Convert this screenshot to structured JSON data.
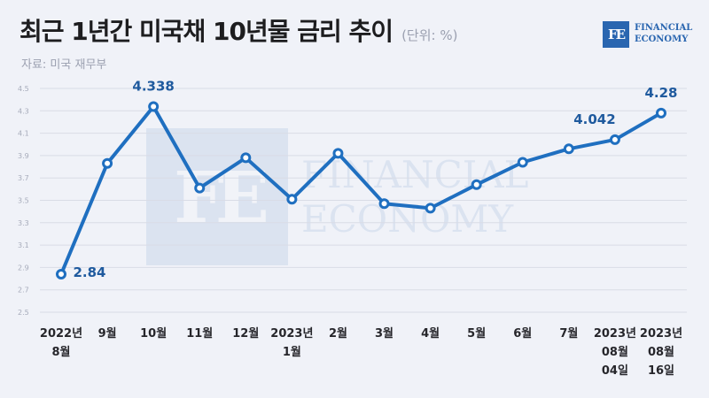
{
  "header": {
    "title": "최근 1년간 미국채 10년물 금리 추이",
    "unit": "(단위: %)",
    "source": "자료: 미국 재무부"
  },
  "brand": {
    "mark": "FE",
    "line1": "FINANCIAL",
    "line2": "ECONOMY"
  },
  "chart_data": {
    "type": "line",
    "title": "최근 1년간 미국채 10년물 금리 추이",
    "unit": "(단위: %)",
    "categories": [
      [
        "2022년",
        "8월"
      ],
      [
        "9월"
      ],
      [
        "10월"
      ],
      [
        "11월"
      ],
      [
        "12월"
      ],
      [
        "2023년",
        "1월"
      ],
      [
        "2월"
      ],
      [
        "3월"
      ],
      [
        "4월"
      ],
      [
        "5월"
      ],
      [
        "6월"
      ],
      [
        "7월"
      ],
      [
        "2023년",
        "08월",
        "04일"
      ],
      [
        "2023년",
        "08월",
        "16일"
      ]
    ],
    "series": [
      {
        "values": [
          2.84,
          3.83,
          4.338,
          3.61,
          3.88,
          3.51,
          3.92,
          3.47,
          3.43,
          3.64,
          3.84,
          3.96,
          4.042,
          4.28
        ]
      }
    ],
    "data_labels": [
      {
        "index": 0,
        "text": "2.84"
      },
      {
        "index": 2,
        "text": "4.338"
      },
      {
        "index": 12,
        "text": "4.042"
      },
      {
        "index": 13,
        "text": "4.28"
      }
    ],
    "yticks": [
      "2.5",
      "2.7",
      "2.9",
      "3.1",
      "3.3",
      "3.5",
      "3.7",
      "3.9",
      "4.1",
      "4.3",
      "4.5"
    ],
    "ylim": [
      2.5,
      4.5
    ],
    "grid": true,
    "colors": {
      "line": "#1f6fc0",
      "marker_fill": "#ffffff",
      "label": "#1f5a9e",
      "grid": "#d9dce6",
      "tick": "#a6abba"
    }
  }
}
